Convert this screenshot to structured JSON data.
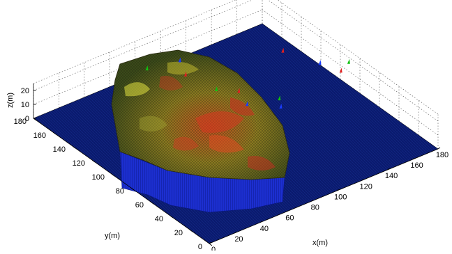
{
  "chart_data": {
    "type": "surface",
    "xlabel": "x(m)",
    "ylabel": "y(m)",
    "zlabel": "z(m)",
    "xlim": [
      0,
      180
    ],
    "ylim": [
      0,
      180
    ],
    "zlim": [
      0,
      25
    ],
    "xticks": [
      "0",
      "20",
      "40",
      "60",
      "80",
      "100",
      "120",
      "140",
      "160",
      "180"
    ],
    "yticks": [
      "0",
      "20",
      "40",
      "60",
      "80",
      "100",
      "120",
      "140",
      "160",
      "180"
    ],
    "zticks": [
      "0",
      "10",
      "20"
    ],
    "grid": true,
    "colors": {
      "floor": "#0a1a6e",
      "mesh_low": "#3a4a1a",
      "mesh_mid": "#8a7a20",
      "mesh_high": "#d04020",
      "walls": "#1c2fd0",
      "markers": [
        "#1a3cff",
        "#10c010",
        "#e02020"
      ]
    },
    "markers": [
      {
        "x": 92,
        "y": 150,
        "color": "blue"
      },
      {
        "x": 70,
        "y": 155,
        "color": "green"
      },
      {
        "x": 85,
        "y": 135,
        "color": "red"
      },
      {
        "x": 150,
        "y": 120,
        "color": "red"
      },
      {
        "x": 90,
        "y": 110,
        "color": "green"
      },
      {
        "x": 100,
        "y": 100,
        "color": "red"
      },
      {
        "x": 95,
        "y": 85,
        "color": "blue"
      },
      {
        "x": 115,
        "y": 78,
        "color": "green"
      },
      {
        "x": 110,
        "y": 70,
        "color": "blue"
      },
      {
        "x": 160,
        "y": 95,
        "color": "blue"
      },
      {
        "x": 165,
        "y": 80,
        "color": "red"
      },
      {
        "x": 175,
        "y": 85,
        "color": "green"
      }
    ]
  }
}
